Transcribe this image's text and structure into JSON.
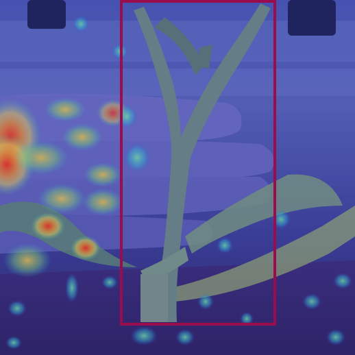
{
  "image": {
    "subject": "plant-stem-heatmap",
    "colors": {
      "overlay_base": "#3a3f9a",
      "box_stroke": "#9a0c4c",
      "heat_high": "#ff3a1a",
      "heat_mid": "#ffd23a",
      "heat_low": "#33d1a8"
    }
  }
}
